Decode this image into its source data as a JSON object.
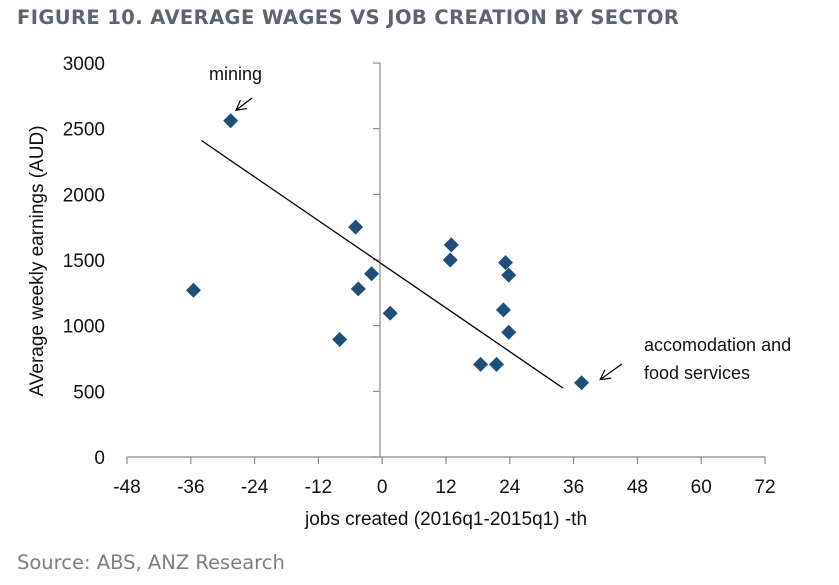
{
  "figure": {
    "title": "FIGURE 10. AVERAGE WAGES VS JOB CREATION BY SECTOR",
    "source": "Source: ABS, ANZ Research"
  },
  "chart_data": {
    "type": "scatter",
    "title": "FIGURE 10. AVERAGE WAGES VS JOB CREATION BY SECTOR",
    "xlabel": "jobs created  (2016q1-2015q1) -th",
    "ylabel": "AVerage weekly earnings (AUD)",
    "xlim": [
      -48,
      72
    ],
    "ylim": [
      0,
      3000
    ],
    "xticks": [
      -48,
      -36,
      -24,
      -12,
      0,
      12,
      24,
      36,
      48,
      60,
      72
    ],
    "yticks": [
      0,
      500,
      1000,
      1500,
      2000,
      2500,
      3000
    ],
    "grid": false,
    "marker_color": "#1f4e79",
    "points": [
      {
        "x": -28.5,
        "y": 2560
      },
      {
        "x": -35.5,
        "y": 1270
      },
      {
        "x": -8,
        "y": 895
      },
      {
        "x": -5,
        "y": 1750
      },
      {
        "x": -4.5,
        "y": 1280
      },
      {
        "x": -2,
        "y": 1395
      },
      {
        "x": 1.5,
        "y": 1095
      },
      {
        "x": 13,
        "y": 1615
      },
      {
        "x": 12.8,
        "y": 1500
      },
      {
        "x": 18.5,
        "y": 705
      },
      {
        "x": 21.5,
        "y": 705
      },
      {
        "x": 22.8,
        "y": 1120
      },
      {
        "x": 23.2,
        "y": 1480
      },
      {
        "x": 23.8,
        "y": 1385
      },
      {
        "x": 23.8,
        "y": 950
      },
      {
        "x": 37.5,
        "y": 565
      }
    ],
    "trendline": {
      "x": [
        -34,
        34
      ],
      "y": [
        2410,
        525
      ]
    },
    "annotations": [
      {
        "text_lines": [
          "mining"
        ],
        "target": {
          "x": -27.5,
          "y": 2640
        }
      },
      {
        "text_lines": [
          "accomodation and",
          "food services"
        ],
        "target": {
          "x": 41,
          "y": 590
        }
      }
    ]
  }
}
